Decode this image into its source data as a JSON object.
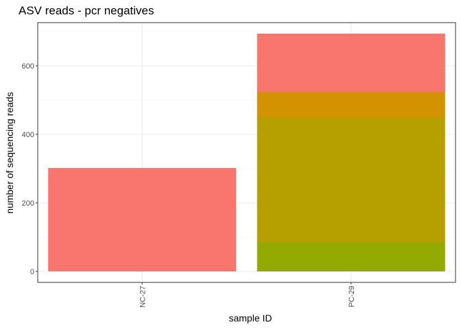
{
  "chart_data": {
    "type": "bar",
    "stacked": true,
    "title": "ASV reads - pcr negatives",
    "xlabel": "sample ID",
    "ylabel": "number of sequencing reads",
    "categories": [
      "NC-27",
      "PC-29"
    ],
    "ylim": [
      0,
      720
    ],
    "yticks": [
      0,
      200,
      400,
      600
    ],
    "grid": true,
    "legend": "none",
    "bars": [
      {
        "category": "NC-27",
        "segments": [
          {
            "value": 302,
            "color": "#F8766D"
          }
        ]
      },
      {
        "category": "PC-29",
        "segments": [
          {
            "value": 85,
            "color": "#93AA00"
          },
          {
            "value": 364,
            "color": "#B5A000"
          },
          {
            "value": 74,
            "color": "#D39200"
          },
          {
            "value": 171,
            "color": "#F8766D"
          }
        ]
      }
    ],
    "colors": {
      "panel_border": "#333333",
      "grid_major": "#ebebeb",
      "grid_minor": "#f5f5f5",
      "tick_text": "#4d4d4d"
    }
  }
}
